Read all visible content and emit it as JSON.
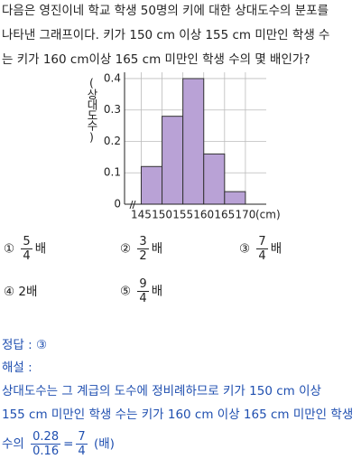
{
  "question": {
    "lines": [
      "다음은 영진이네 학교 학생 50명의 키에 대한 상대도수의 분포를",
      "나타낸 그래프이다. 키가 150 cm 이상 155 cm 미만인 학생 수",
      "는 키가 160 cm이상 165 cm 미만인 학생 수의 몇 배인가?"
    ]
  },
  "chart_data": {
    "type": "histogram",
    "y_label": "(상대도수)",
    "x_label": "(cm)",
    "bins": [
      145,
      150,
      155,
      160,
      165,
      170
    ],
    "values": [
      0.12,
      0.28,
      0.4,
      0.16,
      0.04
    ],
    "color": "#b9a2d6",
    "xlim": [
      141,
      175
    ],
    "ylim": [
      0,
      0.42
    ],
    "xticks": [
      145,
      150,
      155,
      160,
      165,
      170
    ],
    "yticks": [
      0,
      0.1,
      0.2,
      0.3,
      0.4
    ],
    "grid": true
  },
  "choices": [
    {
      "marker": "①",
      "numerator": "5",
      "denominator": "4",
      "unit": "배"
    },
    {
      "marker": "②",
      "numerator": "3",
      "denominator": "2",
      "unit": "배"
    },
    {
      "marker": "③",
      "numerator": "7",
      "denominator": "4",
      "unit": "배"
    },
    {
      "marker": "④",
      "text": "2배"
    },
    {
      "marker": "⑤",
      "numerator": "9",
      "denominator": "4",
      "unit": "배"
    }
  ],
  "answer": {
    "label": "정답 : ③"
  },
  "explanation": {
    "label": "해설 :",
    "lines": [
      "상대도수는 그 계급의 도수에 정비례하므로 키가 150 cm 이상",
      "155 cm 미만인 학생 수는 키가 160 cm 이상 165 cm 미만인 학생"
    ],
    "formula": {
      "prefix": "수의",
      "numerator": "0.28",
      "denominator": "0.16",
      "equals": "=",
      "result_numerator": "7",
      "result_denominator": "4",
      "suffix": "(배)"
    }
  }
}
